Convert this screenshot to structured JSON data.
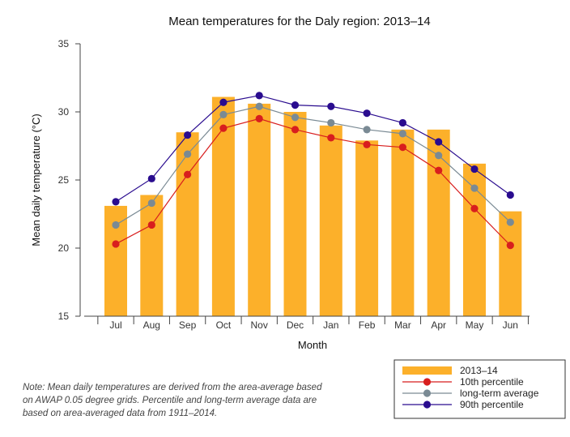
{
  "chart_data": {
    "type": "bar",
    "title": "Mean temperatures for the Daly region: 2013–14",
    "xlabel": "Month",
    "ylabel": "Mean daily temperature (°C)",
    "ylim": [
      15,
      35
    ],
    "yticks": [
      15,
      20,
      25,
      30,
      35
    ],
    "grid": false,
    "legend_position": "bottom-right",
    "categories": [
      "Jul",
      "Aug",
      "Sep",
      "Oct",
      "Nov",
      "Dec",
      "Jan",
      "Feb",
      "Mar",
      "Apr",
      "May",
      "Jun"
    ],
    "bars": {
      "name": "2013–14",
      "color": "#fcb02a",
      "values": [
        23.1,
        23.9,
        28.5,
        31.1,
        30.6,
        30.0,
        29.0,
        27.9,
        28.7,
        28.7,
        26.2,
        22.7
      ]
    },
    "series": [
      {
        "name": "10th percentile",
        "color": "#d81e1e",
        "values": [
          20.3,
          21.7,
          25.4,
          28.8,
          29.5,
          28.7,
          28.1,
          27.6,
          27.4,
          25.7,
          22.9,
          20.2
        ]
      },
      {
        "name": "long-term average",
        "color": "#7a8a94",
        "values": [
          21.7,
          23.3,
          26.9,
          29.8,
          30.4,
          29.6,
          29.2,
          28.7,
          28.4,
          26.8,
          24.4,
          21.9
        ]
      },
      {
        "name": "90th percentile",
        "color": "#2a0c8f",
        "values": [
          23.4,
          25.1,
          28.3,
          30.7,
          31.2,
          30.5,
          30.4,
          29.9,
          29.2,
          27.8,
          25.8,
          23.9
        ]
      }
    ]
  },
  "note": "Note: Mean daily temperatures are derived from the area-average based on AWAP 0.05 degree grids. Percentile and long-term average data are based on area-averaged data from 1911–2014."
}
